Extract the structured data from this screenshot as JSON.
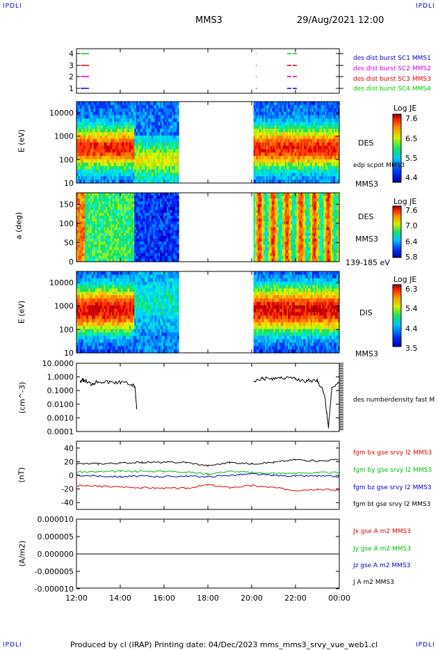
{
  "corner_label": "IPDLI",
  "header": {
    "mission": "MMS3",
    "datetime": "29/Aug/2021 12:00"
  },
  "footer": {
    "text": "Produced by cl (IRAP)   Printing date: 04/Dec/2023   mms_mms3_srvy_vue_web1.cl"
  },
  "x_axis": {
    "ticks": [
      "12:00",
      "14:00",
      "16:00",
      "18:00",
      "20:00",
      "22:00",
      "00:00"
    ]
  },
  "panels": {
    "burst": {
      "yticks": [
        "4",
        "3",
        "2",
        "1"
      ],
      "legend": [
        {
          "text": "des dist burst SC1 MMS1",
          "color": "#0000cc"
        },
        {
          "text": "des dist burst SC2 MMS2",
          "color": "#cc00cc"
        },
        {
          "text": "des dist burst SC3 MMS3",
          "color": "#dd0000"
        },
        {
          "text": "des dist burst SC4 MMS4",
          "color": "#00cc00"
        }
      ]
    },
    "des_energy": {
      "ylabel": "E (eV)",
      "yticks": [
        "10000",
        "1000",
        "100",
        "10"
      ],
      "right_label": "DES",
      "right_sub": "edp scpot MMS3",
      "right_bottom": "MMS3",
      "colorbar": {
        "title": "Log JE",
        "ticks": [
          "7.6",
          "6.5",
          "5.5",
          "4.4"
        ]
      }
    },
    "des_pitch": {
      "ylabel": "a (deg)",
      "yticks": [
        "150",
        "100",
        "50",
        "0"
      ],
      "right_label": "DES",
      "right_sub": "MMS3",
      "right_bottom": "139-185 eV",
      "colorbar": {
        "title": "Log JE",
        "ticks": [
          "7.6",
          "7.0",
          "6.4",
          "5.8"
        ]
      }
    },
    "dis_energy": {
      "ylabel": "E (eV)",
      "yticks": [
        "10000",
        "1000",
        "100",
        "10"
      ],
      "right_label": "DIS",
      "right_bottom": "MMS3",
      "colorbar": {
        "title": "Log JE",
        "ticks": [
          "6.3",
          "5.4",
          "4.4",
          "3.5"
        ]
      }
    },
    "density": {
      "ylabel": "(cm^-3)",
      "yticks": [
        "10.0000",
        "1.0000",
        "0.1000",
        "0.0100",
        "0.0010",
        "0.0001"
      ],
      "legend": "des numberdensity fast M"
    },
    "fgm": {
      "ylabel": "(nT)",
      "yticks": [
        "40",
        "20",
        "0",
        "-20",
        "-40"
      ],
      "legend": [
        {
          "text": "fgm bx gse srvy l2 MMS3",
          "color": "#dd0000"
        },
        {
          "text": "fgm by gse srvy l2 MMS3",
          "color": "#00bb00"
        },
        {
          "text": "fgm bz gse srvy l2 MMS3",
          "color": "#0000cc"
        },
        {
          "text": "fgm bt gse srvy l2 MMS3",
          "color": "#000000"
        }
      ]
    },
    "current": {
      "ylabel": "(A/m2)",
      "yticks": [
        "0.000010",
        "0.000005",
        "0.000000",
        "-0.000005",
        "-0.000010"
      ],
      "legend": [
        {
          "text": "Jx gse A m2 MMS3",
          "color": "#dd0000"
        },
        {
          "text": "Jy gse A m2 MMS3",
          "color": "#00bb00"
        },
        {
          "text": "Jz gse A m2 MMS3",
          "color": "#0000cc"
        },
        {
          "text": "J A m2 MMS3",
          "color": "#000000"
        }
      ]
    }
  },
  "chart_data": [
    {
      "type": "scatter",
      "panel": "burst",
      "xlim": [
        "12:00",
        "00:00"
      ],
      "ylim": [
        0.5,
        4.5
      ],
      "series": [
        {
          "name": "des dist burst SC1 MMS1",
          "values": [
            1
          ]
        },
        {
          "name": "des dist burst SC2 MMS2",
          "values": [
            2
          ]
        },
        {
          "name": "des dist burst SC3 MMS3",
          "values": [
            3
          ]
        },
        {
          "name": "des dist burst SC4 MMS4",
          "values": [
            4
          ]
        }
      ]
    },
    {
      "type": "heatmap",
      "panel": "des_energy",
      "ylabel": "E (eV)",
      "scale": "log",
      "ylim": [
        10,
        30000
      ],
      "data_intervals": [
        [
          "12:00",
          "16:40"
        ],
        [
          "20:05",
          "00:00"
        ]
      ],
      "colorbar_range": [
        4.4,
        7.6
      ]
    },
    {
      "type": "heatmap",
      "panel": "des_pitch",
      "ylabel": "a (deg)",
      "ylim": [
        0,
        180
      ],
      "data_intervals": [
        [
          "12:00",
          "16:40"
        ],
        [
          "20:05",
          "00:00"
        ]
      ],
      "colorbar_range": [
        5.8,
        7.6
      ]
    },
    {
      "type": "heatmap",
      "panel": "dis_energy",
      "ylabel": "E (eV)",
      "scale": "log",
      "ylim": [
        10,
        30000
      ],
      "data_intervals": [
        [
          "12:00",
          "16:40"
        ],
        [
          "20:05",
          "00:00"
        ]
      ],
      "colorbar_range": [
        3.5,
        6.3
      ]
    },
    {
      "type": "line",
      "panel": "density",
      "ylabel": "(cm^-3)",
      "scale": "log",
      "ylim": [
        0.0001,
        10
      ],
      "series": [
        {
          "name": "des numberdensity fast M",
          "x": [
            "12:10",
            "12:20",
            "12:40",
            "13:00",
            "13:30",
            "14:00",
            "14:30",
            "14:40",
            "14:45",
            "20:05",
            "20:30",
            "21:00",
            "21:30",
            "22:00",
            "22:30",
            "23:00",
            "23:20",
            "23:30",
            "23:40",
            "24:00"
          ],
          "y": [
            0.5,
            0.6,
            0.3,
            0.5,
            0.4,
            0.4,
            0.3,
            0.2,
            0.005,
            0.4,
            0.7,
            0.8,
            0.9,
            0.7,
            0.5,
            0.6,
            0.05,
            0.0002,
            0.2,
            0.4
          ]
        }
      ]
    },
    {
      "type": "line",
      "panel": "fgm",
      "ylabel": "(nT)",
      "ylim": [
        -50,
        50
      ],
      "x": [
        "12:00",
        "13:00",
        "14:00",
        "15:00",
        "16:00",
        "17:00",
        "18:00",
        "19:00",
        "20:00",
        "21:00",
        "22:00",
        "23:00",
        "24:00"
      ],
      "series": [
        {
          "name": "fgm bx gse srvy l2 MMS3",
          "values": [
            -15,
            -16,
            -17,
            -18,
            -19,
            -19,
            -14,
            -18,
            -15,
            -18,
            -22,
            -20,
            -22
          ]
        },
        {
          "name": "fgm by gse srvy l2 MMS3",
          "values": [
            5,
            5,
            6,
            6,
            6,
            5,
            2,
            6,
            4,
            3,
            3,
            4,
            4
          ]
        },
        {
          "name": "fgm bz gse srvy l2 MMS3",
          "values": [
            0,
            -1,
            -2,
            -1,
            -2,
            -1,
            -2,
            0,
            2,
            0,
            -1,
            -1,
            -2
          ]
        },
        {
          "name": "fgm bt gse srvy l2 MMS3",
          "values": [
            17,
            17,
            18,
            19,
            19,
            19,
            14,
            19,
            17,
            19,
            23,
            21,
            23
          ]
        }
      ]
    },
    {
      "type": "line",
      "panel": "current",
      "ylabel": "(A/m2)",
      "ylim": [
        -1e-05,
        1e-05
      ],
      "x": [
        "12:00",
        "18:00",
        "00:00"
      ],
      "series": [
        {
          "name": "J A m2 MMS3",
          "values": [
            0,
            0,
            0
          ]
        }
      ]
    }
  ]
}
